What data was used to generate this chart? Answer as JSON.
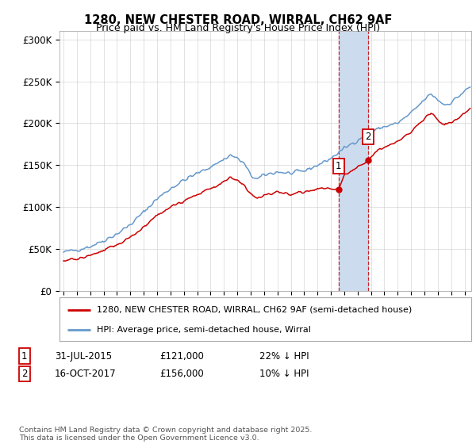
{
  "title_line1": "1280, NEW CHESTER ROAD, WIRRAL, CH62 9AF",
  "title_line2": "Price paid vs. HM Land Registry's House Price Index (HPI)",
  "ylim": [
    0,
    310000
  ],
  "yticks": [
    0,
    50000,
    100000,
    150000,
    200000,
    250000,
    300000
  ],
  "ytick_labels": [
    "£0",
    "£50K",
    "£100K",
    "£150K",
    "£200K",
    "£250K",
    "£300K"
  ],
  "xlim_start": 1994.7,
  "xlim_end": 2025.5,
  "transaction1_date": 2015.58,
  "transaction1_price": 121000,
  "transaction2_date": 2017.79,
  "transaction2_price": 156000,
  "legend_line1": "1280, NEW CHESTER ROAD, WIRRAL, CH62 9AF (semi-detached house)",
  "legend_line2": "HPI: Average price, semi-detached house, Wirral",
  "table_row1_num": "1",
  "table_row1_date": "31-JUL-2015",
  "table_row1_price": "£121,000",
  "table_row1_hpi": "22% ↓ HPI",
  "table_row2_num": "2",
  "table_row2_date": "16-OCT-2017",
  "table_row2_price": "£156,000",
  "table_row2_hpi": "10% ↓ HPI",
  "footer": "Contains HM Land Registry data © Crown copyright and database right 2025.\nThis data is licensed under the Open Government Licence v3.0.",
  "color_red": "#cc0000",
  "color_blue": "#6699cc",
  "color_shaded": "#ccdcee",
  "background_color": "#ffffff",
  "grid_color": "#cccccc",
  "hpi_anchors_x": [
    1995.0,
    1996.0,
    1997.0,
    1998.0,
    1999.0,
    2000.0,
    2001.0,
    2002.0,
    2003.0,
    2004.0,
    2005.0,
    2006.0,
    2007.0,
    2007.5,
    2008.0,
    2008.5,
    2009.0,
    2009.5,
    2010.0,
    2011.0,
    2012.0,
    2013.0,
    2014.0,
    2015.0,
    2016.0,
    2017.0,
    2018.0,
    2019.0,
    2020.0,
    2021.0,
    2022.0,
    2022.5,
    2023.0,
    2023.5,
    2024.0,
    2025.0,
    2025.4
  ],
  "hpi_anchors_y": [
    46000,
    49000,
    53000,
    60000,
    68000,
    79000,
    94000,
    110000,
    122000,
    132000,
    140000,
    148000,
    157000,
    162000,
    158000,
    152000,
    138000,
    133000,
    138000,
    142000,
    140000,
    143000,
    150000,
    158000,
    170000,
    180000,
    190000,
    196000,
    200000,
    212000,
    228000,
    235000,
    228000,
    222000,
    225000,
    238000,
    243000
  ],
  "pp_anchors_x": [
    1995.0,
    1996.0,
    1997.0,
    1998.0,
    1999.0,
    2000.0,
    2001.0,
    2002.0,
    2003.0,
    2004.0,
    2005.0,
    2006.0,
    2007.0,
    2007.5,
    2008.0,
    2008.5,
    2009.0,
    2009.5,
    2010.0,
    2011.0,
    2012.0,
    2013.0,
    2014.0,
    2015.58,
    2016.0,
    2017.79,
    2018.5,
    2019.0,
    2020.0,
    2021.0,
    2022.0,
    2022.5,
    2023.0,
    2023.5,
    2024.0,
    2025.0,
    2025.4
  ],
  "pp_anchors_y": [
    36000,
    38000,
    42000,
    48000,
    55000,
    64000,
    76000,
    90000,
    100000,
    108000,
    115000,
    122000,
    130000,
    135000,
    132000,
    126000,
    114000,
    110000,
    114000,
    118000,
    115000,
    118000,
    122000,
    121000,
    138000,
    156000,
    168000,
    172000,
    178000,
    190000,
    206000,
    212000,
    204000,
    198000,
    200000,
    212000,
    218000
  ]
}
